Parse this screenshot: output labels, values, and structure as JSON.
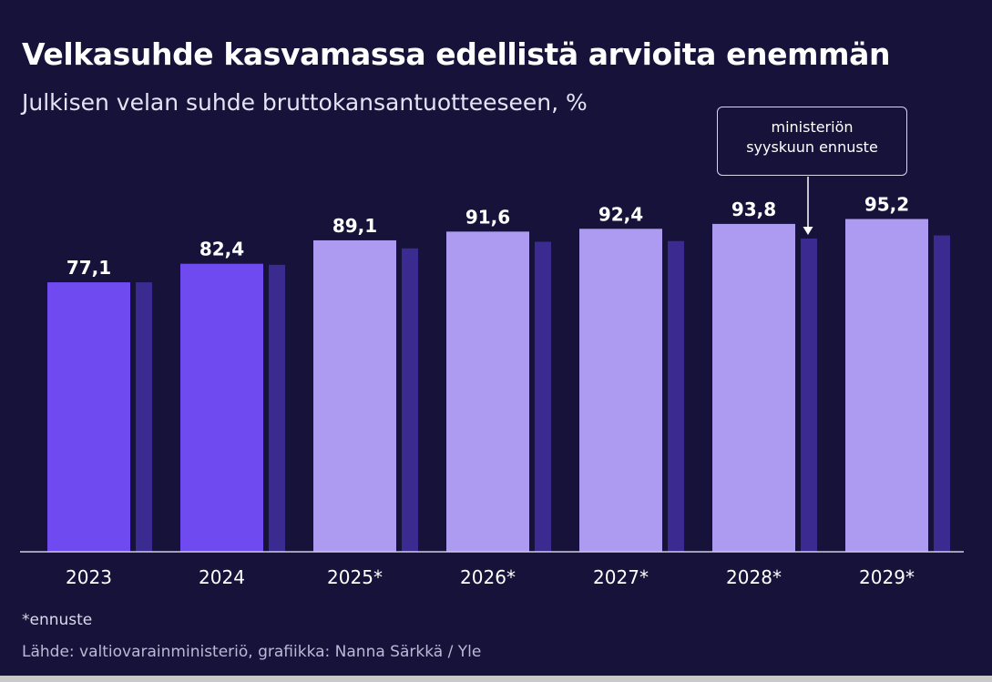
{
  "title": "Velkasuhde kasvamassa edellistä arvioita enemmän",
  "subtitle": "Julkisen velan suhde bruttokansantuotteeseen, %",
  "callout": {
    "line1": "ministeriön",
    "line2": "syyskuun ennuste"
  },
  "note": "*ennuste",
  "source": "Lähde: valtiovarainministeriö, grafiikka: Nanna Särkkä / Yle",
  "colors": {
    "background": "#16123a",
    "actual": "#6e4af0",
    "forecast": "#ad9bf2",
    "previous_forecast": "#3b2a90",
    "axis": "#d0cde3"
  },
  "chart_data": {
    "type": "bar",
    "categories": [
      "2023",
      "2024",
      "2025*",
      "2026*",
      "2027*",
      "2028*",
      "2029*"
    ],
    "series": [
      {
        "values": [
          77.1,
          82.4,
          89.1,
          91.6,
          92.4,
          93.8,
          95.2
        ],
        "labels": [
          "77,1",
          "82,4",
          "89,1",
          "91,6",
          "92,4",
          "93,8",
          "95,2"
        ],
        "kinds": [
          "actual",
          "actual",
          "forecast",
          "forecast",
          "forecast",
          "forecast",
          "forecast"
        ]
      },
      {
        "values": [
          77.1,
          82.1,
          86.8,
          88.7,
          88.9,
          89.6,
          90.5
        ]
      }
    ],
    "ylim": [
      0,
      100
    ],
    "grid": false,
    "legend": "none"
  }
}
